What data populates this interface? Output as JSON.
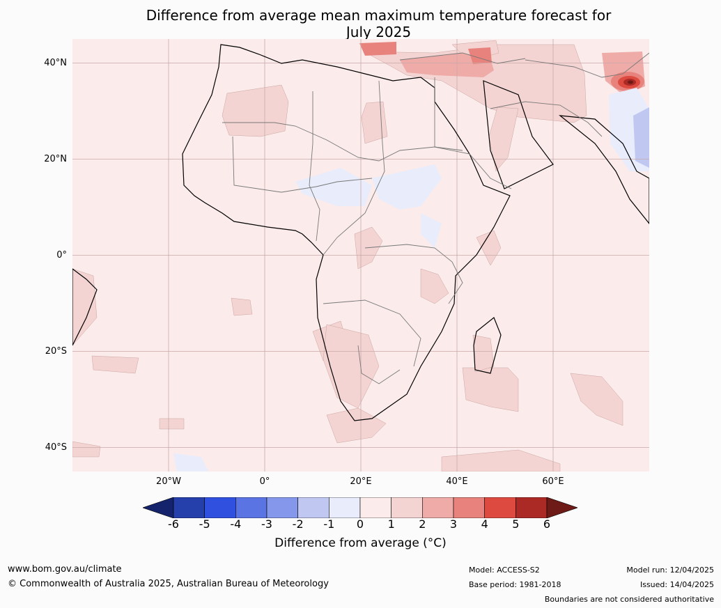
{
  "title": {
    "line1": "Difference from average mean maximum temperature forecast for",
    "line2": "July 2025"
  },
  "map": {
    "lat_labels": [
      "40°N",
      "20°N",
      "0°",
      "20°S",
      "40°S"
    ],
    "lon_labels": [
      "20°W",
      "0°",
      "20°E",
      "40°E",
      "60°E"
    ],
    "lat_values": [
      40,
      20,
      0,
      -20,
      -40
    ],
    "lon_values": [
      -20,
      0,
      20,
      40,
      60
    ],
    "extent": {
      "lon_min": -40,
      "lon_max": 80,
      "lat_min": -45,
      "lat_max": 45
    },
    "ocean_color": "#fbeceb",
    "grid_color": "#c8a9a9",
    "anomaly_colors": {
      "0_1": "#fbeceb",
      "1_2": "#f4d4d2",
      "2_3": "#eeaba7",
      "3_4": "#e7837c",
      "4_5": "#dc4a40",
      "5_6": "#ac2a26",
      "gt6": "#6e1a17",
      "m1_0": "#e8ecfb",
      "m2_m1": "#c0c8f2"
    }
  },
  "colorbar": {
    "ticks": [
      "-6",
      "-5",
      "-4",
      "-3",
      "-2",
      "-1",
      "0",
      "1",
      "2",
      "3",
      "4",
      "5",
      "6"
    ],
    "colors": [
      "#2640ab",
      "#3050e0",
      "#5a74e4",
      "#8597ea",
      "#c0c8f2",
      "#e8ecfb",
      "#fbeceb",
      "#f4d4d2",
      "#eeaba7",
      "#e7837c",
      "#dc4a40",
      "#ac2a26"
    ],
    "low_extend_color": "#14236b",
    "high_extend_color": "#6e1a17",
    "label": "Difference from average (°C)"
  },
  "footer": {
    "website": "www.bom.gov.au/climate",
    "copyright": "© Commonwealth of Australia 2025, Australian Bureau of Meteorology",
    "model": "Model: ACCESS-S2",
    "base_period": "Base period: 1981-2018",
    "model_run": "Model run: 12/04/2025",
    "issued": "Issued: 14/04/2025",
    "disclaimer": "Boundaries are not considered authoritative"
  }
}
